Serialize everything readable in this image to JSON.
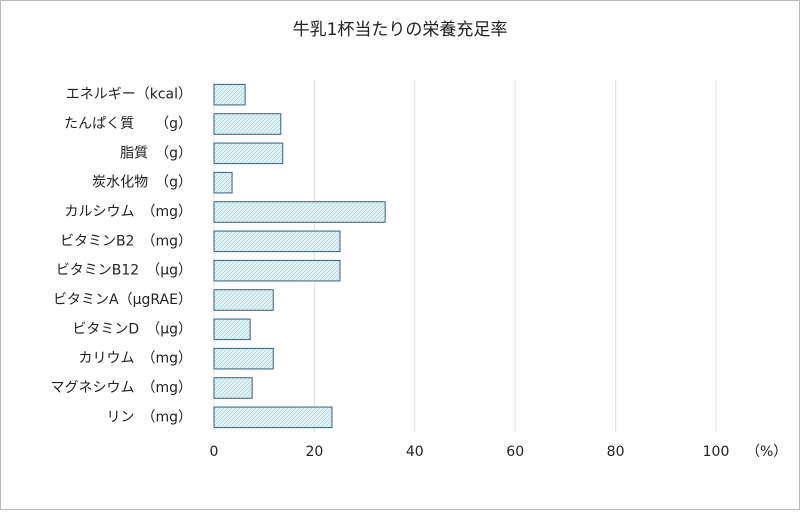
{
  "chart_data": {
    "type": "barh",
    "title": "牛乳1杯当たりの栄養充足率",
    "categories": [
      "エネルギー（kcal）",
      "たんぱく質　　（g）",
      "脂質　（g）",
      "炭水化物　（g）",
      "カルシウム　（mg）",
      "ビタミンB2　（mg）",
      "ビタミンB12　（μg）",
      "ビタミンA（μgRAE）",
      "ビタミンD　（μg）",
      "カリウム　（mg）",
      "マグネシウム　（mg）",
      "リン　（mg）"
    ],
    "values": [
      6.2,
      13.3,
      13.7,
      3.6,
      34.1,
      25.1,
      25.1,
      11.8,
      7.2,
      11.8,
      7.6,
      23.5
    ],
    "color": "#dff3f5",
    "edge_color": "#3a5f7d",
    "xlim": [
      0,
      100
    ],
    "xticks": [
      0,
      20,
      40,
      60,
      80,
      100
    ],
    "x_unit": "（%）",
    "grid": true
  }
}
